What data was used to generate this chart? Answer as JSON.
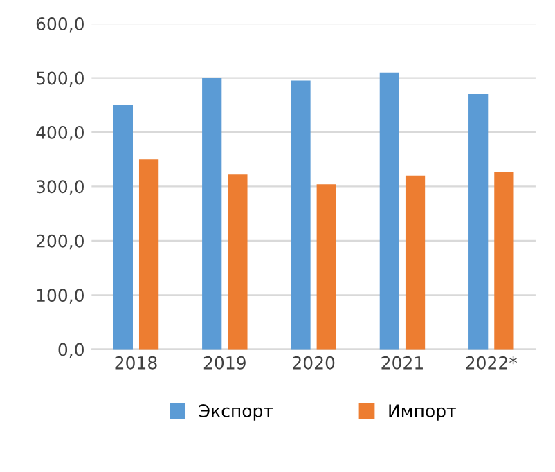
{
  "chart_data": {
    "type": "bar",
    "categories": [
      "2018",
      "2019",
      "2020",
      "2021",
      "2022*"
    ],
    "series": [
      {
        "name": "Экспорт",
        "color": "#5b9bd5",
        "values": [
          450,
          500,
          495,
          510,
          470
        ]
      },
      {
        "name": "Импорт",
        "color": "#ed7d31",
        "values": [
          350,
          322,
          304,
          320,
          326
        ]
      }
    ],
    "ylim": [
      0,
      600
    ],
    "yticks": [
      {
        "value": 0,
        "label": "0,0"
      },
      {
        "value": 100,
        "label": "100,0"
      },
      {
        "value": 200,
        "label": "200,0"
      },
      {
        "value": 300,
        "label": "300,0"
      },
      {
        "value": 400,
        "label": "400,0"
      },
      {
        "value": 500,
        "label": "500,0"
      },
      {
        "value": 600,
        "label": "600,0"
      }
    ],
    "grid": "y",
    "legend": "bottom"
  }
}
